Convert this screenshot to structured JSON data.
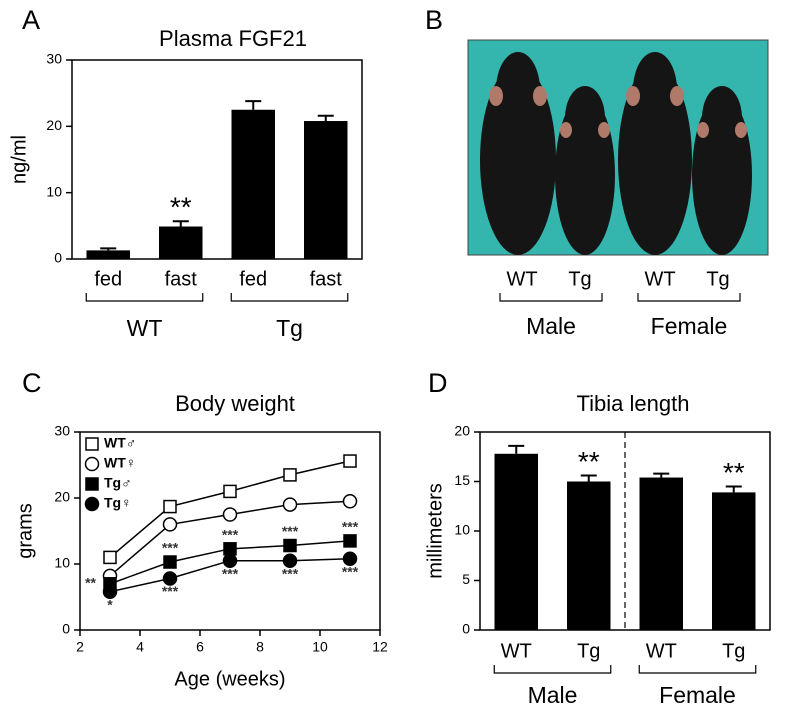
{
  "chart_data": [
    {
      "type": "bar",
      "panel": "A",
      "title": "Plasma FGF21",
      "ylabel": "ng/ml",
      "categories": [
        "fed",
        "fast",
        "fed",
        "fast"
      ],
      "values": [
        1.3,
        4.9,
        22.5,
        20.8
      ],
      "errors": [
        0.3,
        0.8,
        1.3,
        0.8
      ],
      "annotations": [
        {
          "index": 1,
          "text": "**"
        }
      ],
      "groups": [
        "WT",
        "Tg"
      ],
      "color": "#000000",
      "ylim": [
        0,
        30
      ],
      "yticks": [
        0,
        10,
        20,
        30
      ]
    },
    {
      "type": "photo",
      "panel": "B",
      "categories": [
        "WT",
        "Tg",
        "WT",
        "Tg"
      ],
      "groups": [
        "Male",
        "Female"
      ]
    },
    {
      "type": "line",
      "panel": "C",
      "title": "Body weight",
      "xlabel": "Age (weeks)",
      "ylabel": "grams",
      "x": [
        3,
        5,
        7,
        9,
        11
      ],
      "series": [
        {
          "name": "WT♂",
          "color": "#000000",
          "marker": "square",
          "fill": "#ffffff",
          "values": [
            11,
            18.7,
            21,
            23.5,
            25.6
          ]
        },
        {
          "name": "WT♀",
          "color": "#000000",
          "marker": "circle",
          "fill": "#ffffff",
          "values": [
            8.2,
            16,
            17.5,
            19,
            19.5
          ]
        },
        {
          "name": "Tg♂",
          "color": "#000000",
          "marker": "square",
          "fill": "#000000",
          "values": [
            7,
            10.3,
            12.3,
            12.8,
            13.5
          ],
          "annotations": [
            "**",
            "***",
            "***",
            "***",
            "***"
          ],
          "annotation_side": "above"
        },
        {
          "name": "Tg♀",
          "color": "#000000",
          "marker": "circle",
          "fill": "#000000",
          "values": [
            5.8,
            7.8,
            10.5,
            10.5,
            10.8
          ],
          "annotations": [
            "*",
            "***",
            "***",
            "***",
            "***"
          ],
          "annotation_side": "below"
        }
      ],
      "xlim": [
        2,
        12
      ],
      "xticks": [
        2,
        4,
        6,
        8,
        10,
        12
      ],
      "ylim": [
        0,
        30
      ],
      "yticks": [
        0,
        10,
        20,
        30
      ],
      "legend": "upper left"
    },
    {
      "type": "bar",
      "panel": "D",
      "title": "Tibia length",
      "ylabel": "millimeters",
      "categories": [
        "WT",
        "Tg",
        "WT",
        "Tg"
      ],
      "values": [
        17.8,
        15.0,
        15.4,
        13.9
      ],
      "errors": [
        0.8,
        0.6,
        0.4,
        0.6
      ],
      "annotations": [
        {
          "index": 1,
          "text": "**"
        },
        {
          "index": 3,
          "text": "**"
        }
      ],
      "groups": [
        "Male",
        "Female"
      ],
      "separator": true,
      "color": "#000000",
      "ylim": [
        0,
        20
      ],
      "yticks": [
        0,
        5,
        10,
        15,
        20
      ]
    }
  ]
}
